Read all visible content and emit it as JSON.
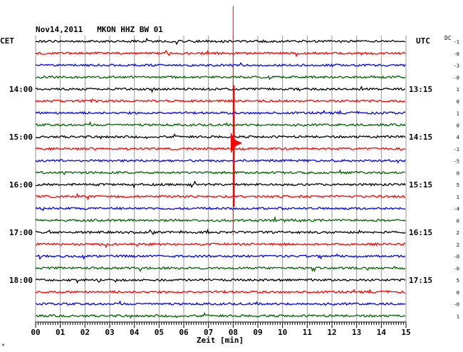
{
  "chart_data": {
    "type": "line",
    "title": "Nov14,2011   MKON HHZ BW 01",
    "xlabel": "Zeit [min]",
    "left_axis_title": "CET",
    "right_axis_title": "UTC",
    "dc_title": "DC",
    "x_ticks": [
      "00",
      "01",
      "02",
      "03",
      "04",
      "05",
      "06",
      "07",
      "08",
      "09",
      "10",
      "11",
      "12",
      "13",
      "14",
      "15"
    ],
    "xlim": [
      0,
      15
    ],
    "grid": true,
    "trace_colors": [
      "#000000",
      "#ff0000",
      "#0000ff",
      "#006400"
    ],
    "left_time_labels": [
      "14:00",
      "15:00",
      "16:00",
      "17:00",
      "18:00"
    ],
    "right_time_labels": [
      "13:15",
      "14:15",
      "15:15",
      "16:15",
      "17:15"
    ],
    "dc_values": [
      "-1",
      "-0",
      "-3",
      "-0",
      "1",
      "0",
      "1",
      "0",
      "4",
      "-1",
      "-5",
      "0",
      "5",
      "1",
      "-4",
      "0",
      "2",
      "2",
      "-0",
      "-0",
      "5",
      "0",
      "-0",
      "1"
    ],
    "event": {
      "minute": 8.0,
      "trace_index": 9,
      "description": "seismic event"
    },
    "footer_mark": "*"
  }
}
